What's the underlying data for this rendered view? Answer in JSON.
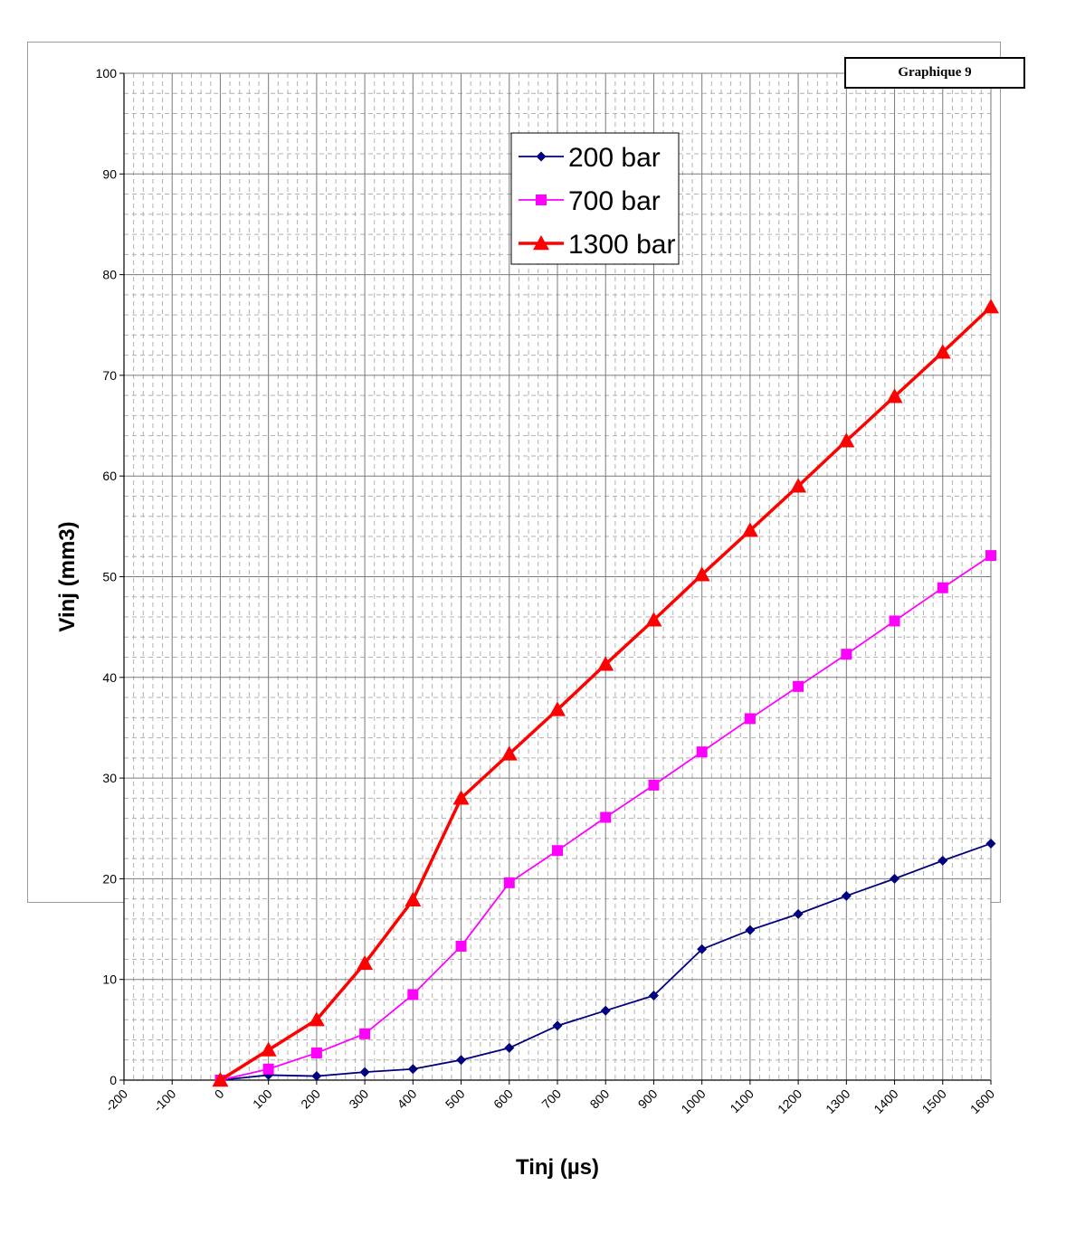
{
  "chart_data": {
    "type": "line",
    "title": "",
    "xlabel": "Tinj (µs)",
    "ylabel": "Vinj (mm3)",
    "xlim": [
      -200,
      1600
    ],
    "ylim": [
      0,
      100
    ],
    "x_ticks": [
      "-200",
      "-100",
      "0",
      "100",
      "200",
      "300",
      "400",
      "500",
      "600",
      "700",
      "800",
      "900",
      "1000",
      "1100",
      "1200",
      "1300",
      "1400",
      "1500",
      "1600"
    ],
    "y_ticks": [
      "0",
      "10",
      "20",
      "30",
      "40",
      "50",
      "60",
      "70",
      "80",
      "90",
      "100"
    ],
    "grid": true,
    "legend_position": "top-center",
    "x": [
      0,
      100,
      200,
      300,
      400,
      500,
      600,
      700,
      800,
      900,
      1000,
      1100,
      1200,
      1300,
      1400,
      1500,
      1600
    ],
    "series": [
      {
        "name": "200 bar",
        "color": "#000080",
        "marker": "diamond",
        "values": [
          0,
          0.5,
          0.4,
          0.8,
          1.1,
          2.0,
          3.2,
          5.4,
          6.9,
          8.4,
          13.0,
          14.9,
          16.5,
          18.3,
          20.0,
          21.8,
          23.5
        ]
      },
      {
        "name": "700 bar",
        "color": "#ff00ff",
        "marker": "square",
        "values": [
          0,
          1.1,
          2.7,
          4.6,
          8.5,
          13.3,
          19.6,
          22.8,
          26.1,
          29.3,
          32.6,
          35.9,
          39.1,
          42.3,
          45.6,
          48.9,
          52.1
        ]
      },
      {
        "name": "1300 bar",
        "color": "#ff0000",
        "marker": "triangle",
        "values": [
          0,
          3.0,
          6.0,
          11.6,
          17.9,
          28.0,
          32.4,
          36.8,
          41.3,
          45.7,
          50.2,
          54.6,
          59.0,
          63.5,
          67.9,
          72.3,
          76.8
        ]
      }
    ]
  },
  "badge": {
    "text": "Graphique 9"
  }
}
